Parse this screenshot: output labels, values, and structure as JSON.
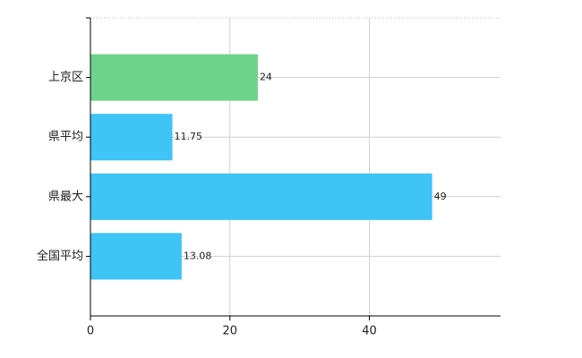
{
  "chart_data": {
    "type": "barh",
    "categories": [
      "上京区",
      "県平均",
      "県最大",
      "全国平均"
    ],
    "values": [
      24,
      11.75,
      49,
      13.08
    ],
    "colors": [
      "#6dd38a",
      "#3ec4f5",
      "#3ec4f5",
      "#3ec4f5"
    ],
    "xlim": [
      0,
      58.8
    ],
    "xticks": [
      0,
      20,
      40
    ],
    "grid": true
  }
}
